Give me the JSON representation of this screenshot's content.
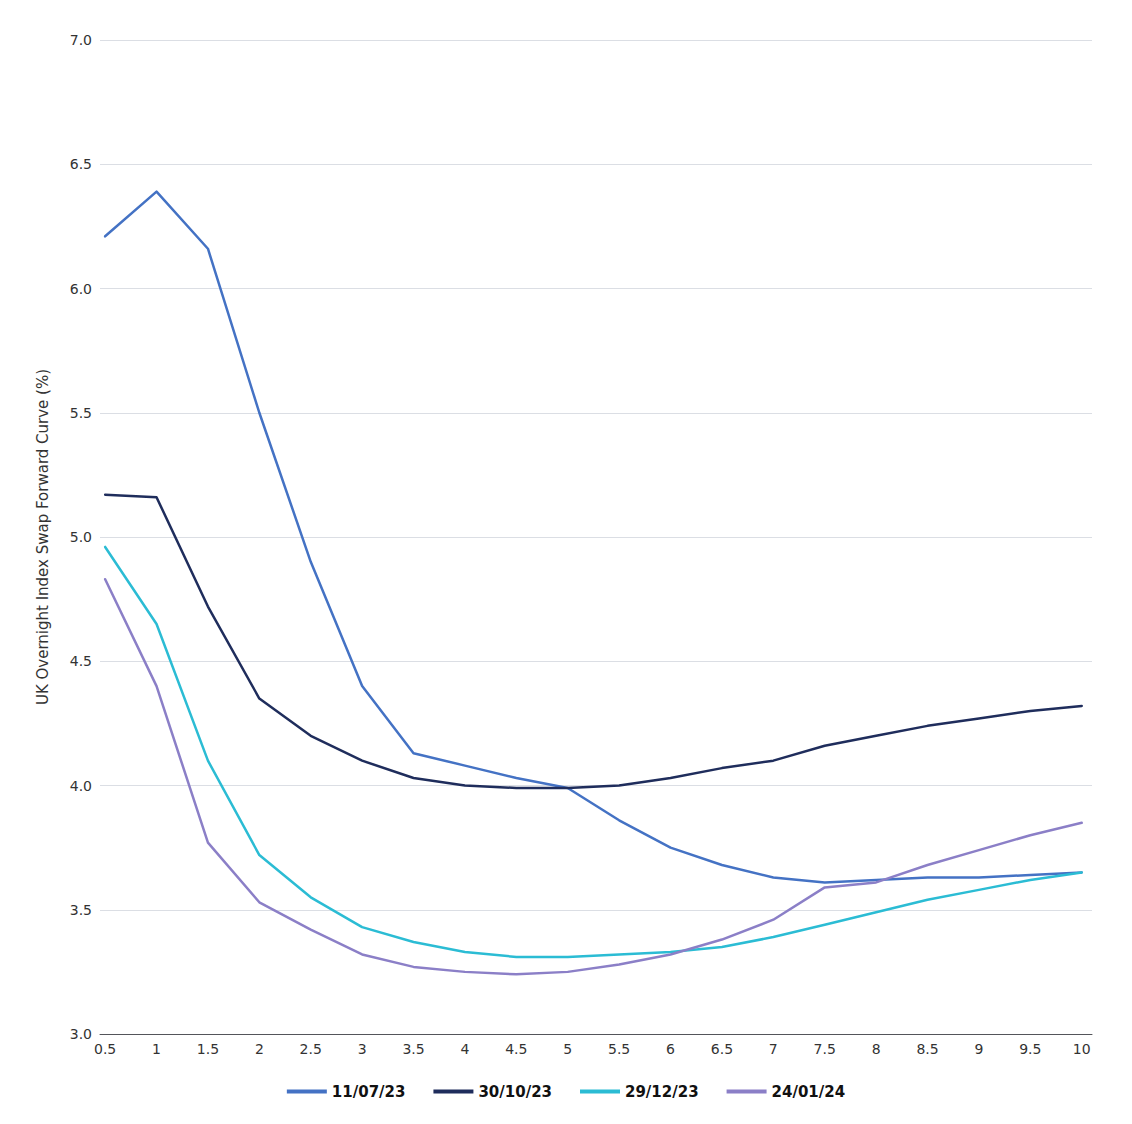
{
  "chart_data": {
    "type": "line",
    "x": [
      0.5,
      1.0,
      1.5,
      2.0,
      2.5,
      3.0,
      3.5,
      4.0,
      4.5,
      5.0,
      5.5,
      6.0,
      6.5,
      7.0,
      7.5,
      8.0,
      8.5,
      9.0,
      9.5,
      10.0
    ],
    "series": [
      {
        "name": "11/07/23",
        "color": "#4472C4",
        "values": [
          6.21,
          6.39,
          6.16,
          5.5,
          4.9,
          4.4,
          4.13,
          4.08,
          4.03,
          3.99,
          3.86,
          3.75,
          3.68,
          3.63,
          3.61,
          3.62,
          3.63,
          3.63,
          3.64,
          3.65
        ]
      },
      {
        "name": "30/10/23",
        "color": "#1F2D5C",
        "values": [
          5.17,
          5.16,
          4.72,
          4.35,
          4.2,
          4.1,
          4.03,
          4.0,
          3.99,
          3.99,
          4.0,
          4.03,
          4.07,
          4.1,
          4.16,
          4.2,
          4.24,
          4.27,
          4.3,
          4.32
        ]
      },
      {
        "name": "29/12/23",
        "color": "#2BBCD4",
        "values": [
          4.96,
          4.65,
          4.1,
          3.72,
          3.55,
          3.43,
          3.37,
          3.33,
          3.31,
          3.31,
          3.32,
          3.33,
          3.35,
          3.39,
          3.44,
          3.49,
          3.54,
          3.58,
          3.62,
          3.65
        ]
      },
      {
        "name": "24/01/24",
        "color": "#8B7FC7",
        "values": [
          4.83,
          4.4,
          3.77,
          3.53,
          3.42,
          3.32,
          3.27,
          3.25,
          3.24,
          3.25,
          3.28,
          3.32,
          3.38,
          3.46,
          3.59,
          3.61,
          3.68,
          3.74,
          3.8,
          3.85
        ]
      }
    ],
    "ylabel": "UK Overnight Index Swap Forward Curve (%)",
    "xlim": [
      0.45,
      10.1
    ],
    "ylim": [
      3.0,
      7.0
    ],
    "xticks": [
      0.5,
      1,
      1.5,
      2,
      2.5,
      3,
      3.5,
      4,
      4.5,
      5,
      5.5,
      6,
      6.5,
      7,
      7.5,
      8,
      8.5,
      9,
      9.5,
      10
    ],
    "yticks": [
      {
        "value": 3,
        "label": "3.0"
      },
      3.5,
      {
        "value": 4,
        "label": "4.0"
      },
      4.5,
      {
        "value": 5,
        "label": "5.0"
      },
      5.5,
      {
        "value": 6,
        "label": "6.0"
      },
      6.5,
      {
        "value": 7,
        "label": "7.0"
      }
    ],
    "grid": "y",
    "legend": "bottom"
  }
}
